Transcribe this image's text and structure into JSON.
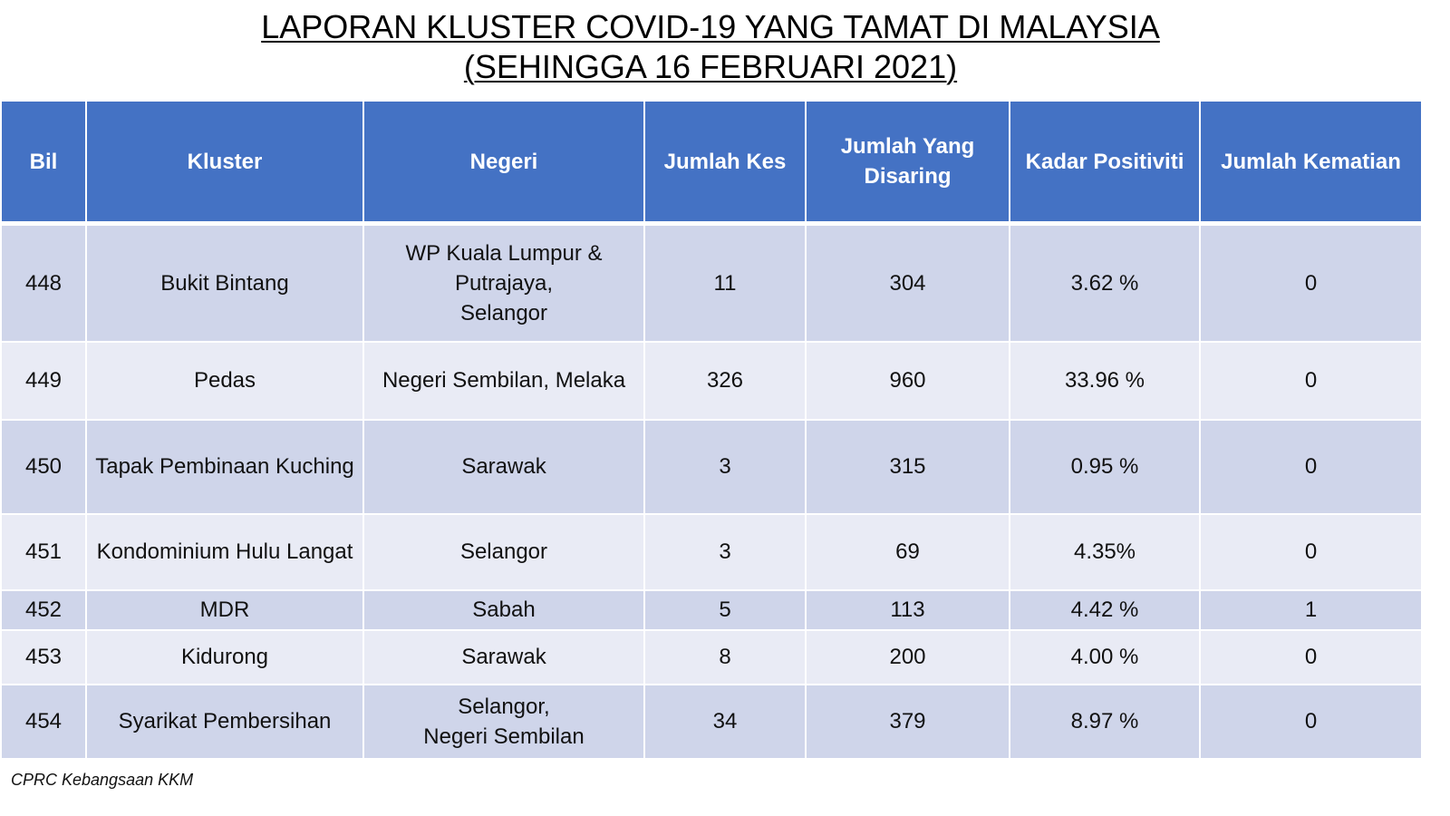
{
  "title": {
    "line1": "LAPORAN KLUSTER COVID-19 YANG TAMAT DI MALAYSIA",
    "line2": "(SEHINGGA 16 FEBRUARI 2021)"
  },
  "header": {
    "bil": "Bil",
    "kluster": "Kluster",
    "negeri": "Negeri",
    "jumlah_kes": "Jumlah Kes",
    "jumlah_disaring": "Jumlah Yang\nDisaring",
    "kadar_positiviti": "Kadar Positiviti",
    "jumlah_kematian": "Jumlah Kematian"
  },
  "rows": [
    {
      "bil": "448",
      "kluster": "Bukit Bintang",
      "negeri": "WP Kuala Lumpur &\nPutrajaya,\nSelangor",
      "kes": "11",
      "disaring": "304",
      "positiviti": "3.62 %",
      "kematian": "0"
    },
    {
      "bil": "449",
      "kluster": "Pedas",
      "negeri": "Negeri Sembilan, Melaka",
      "kes": "326",
      "disaring": "960",
      "positiviti": "33.96 %",
      "kematian": "0"
    },
    {
      "bil": "450",
      "kluster": "Tapak Pembinaan Kuching",
      "negeri": "Sarawak",
      "kes": "3",
      "disaring": "315",
      "positiviti": "0.95 %",
      "kematian": "0"
    },
    {
      "bil": "451",
      "kluster": "Kondominium Hulu Langat",
      "negeri": "Selangor",
      "kes": "3",
      "disaring": "69",
      "positiviti": "4.35%",
      "kematian": "0"
    },
    {
      "bil": "452",
      "kluster": "MDR",
      "negeri": "Sabah",
      "kes": "5",
      "disaring": "113",
      "positiviti": "4.42 %",
      "kematian": "1"
    },
    {
      "bil": "453",
      "kluster": "Kidurong",
      "negeri": "Sarawak",
      "kes": "8",
      "disaring": "200",
      "positiviti": "4.00 %",
      "kematian": "0"
    },
    {
      "bil": "454",
      "kluster": "Syarikat Pembersihan",
      "negeri": "Selangor,\nNegeri Sembilan",
      "kes": "34",
      "disaring": "379",
      "positiviti": "8.97 %",
      "kematian": "0"
    }
  ],
  "source": "CPRC Kebangsaan KKM",
  "colors": {
    "header_bg": "#4472c4",
    "row_odd": "#cfd5ea",
    "row_even": "#e9ebf5"
  }
}
